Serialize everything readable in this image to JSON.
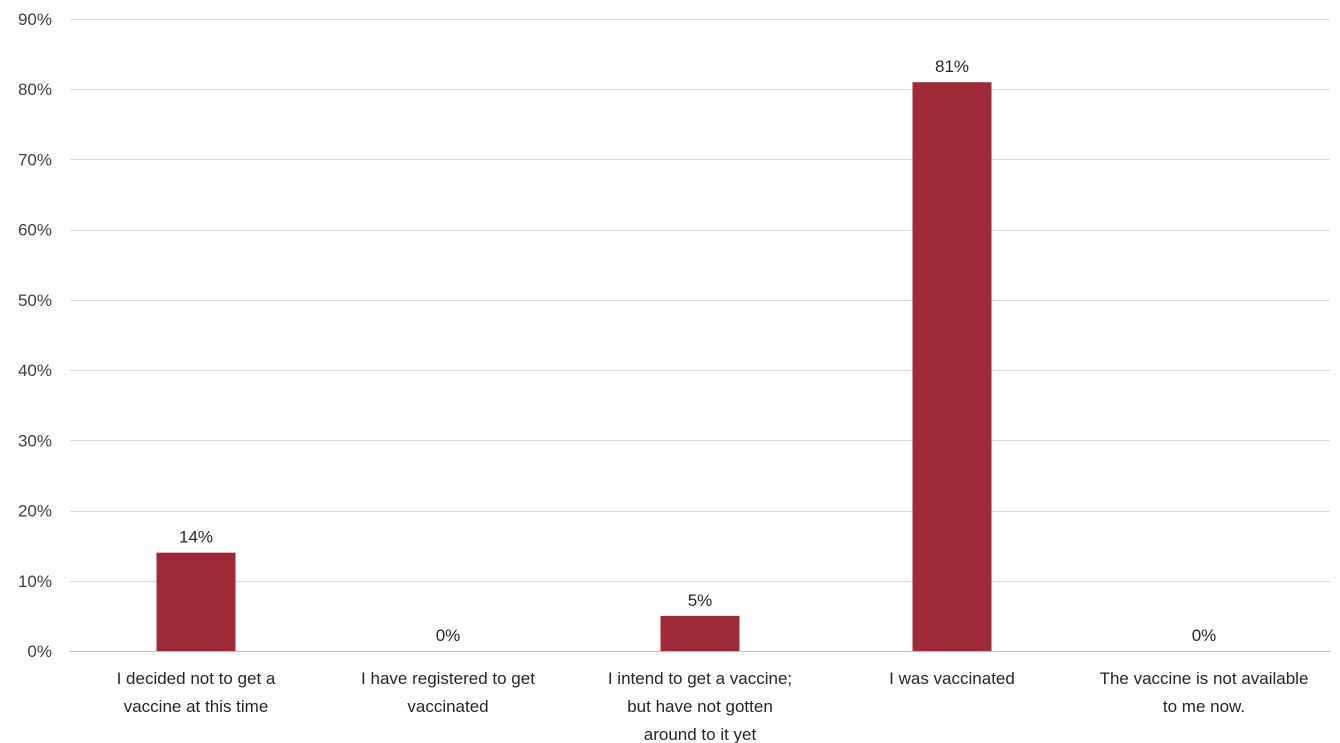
{
  "chart_data": {
    "type": "bar",
    "categories": [
      [
        "I decided not to get a",
        "vaccine at this time"
      ],
      [
        "I have registered to get",
        "vaccinated"
      ],
      [
        "I intend to get a vaccine;",
        "but have not gotten",
        "around to it yet"
      ],
      [
        "I was vaccinated"
      ],
      [
        "The vaccine is not available",
        "to me now."
      ]
    ],
    "values": [
      14,
      0,
      5,
      81,
      0
    ],
    "data_labels": [
      "14%",
      "0%",
      "5%",
      "81%",
      "0%"
    ],
    "ylim": [
      0,
      90
    ],
    "yticks": [
      0,
      10,
      20,
      30,
      40,
      50,
      60,
      70,
      80,
      90
    ],
    "ytick_labels": [
      "0%",
      "10%",
      "20%",
      "30%",
      "40%",
      "50%",
      "60%",
      "70%",
      "80%",
      "90%"
    ],
    "bar_color": "#9E2A37",
    "grid": true,
    "legend": "none"
  }
}
